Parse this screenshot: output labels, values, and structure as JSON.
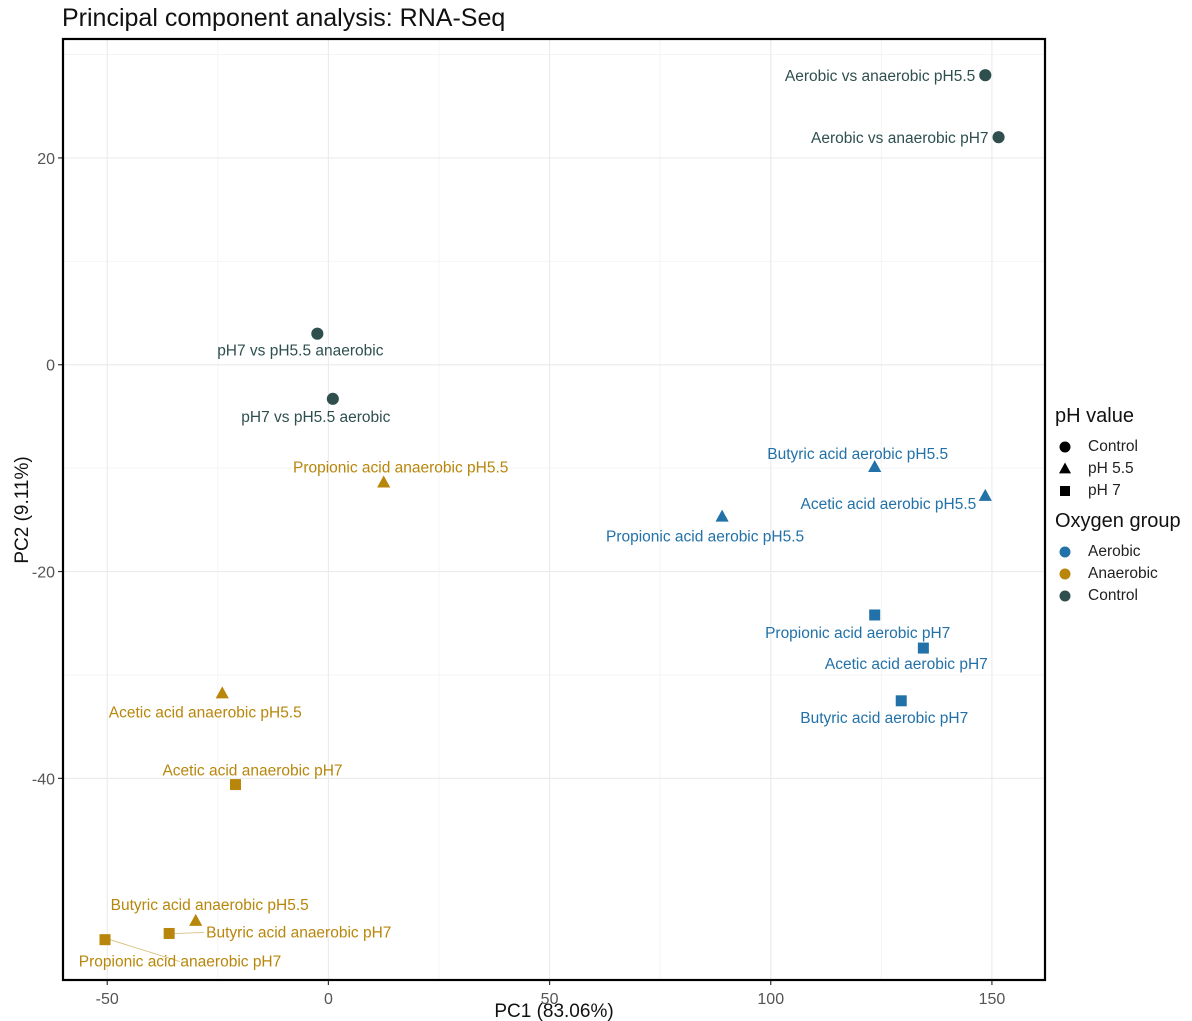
{
  "chart_data": {
    "type": "scatter",
    "title": "Principal component analysis: RNA-Seq",
    "xlabel": "PC1 (83.06%)",
    "ylabel": "PC2 (9.11%)",
    "xlim": [
      -60,
      162
    ],
    "ylim": [
      -59.5,
      31.5
    ],
    "xticks": [
      -50,
      0,
      50,
      100,
      150
    ],
    "yticks": [
      20,
      0,
      -20,
      -40
    ],
    "grid": true,
    "legend_position": "right",
    "legends": [
      {
        "title": "pH value",
        "kind": "shape",
        "items": [
          {
            "label": "Control",
            "shape": "circle"
          },
          {
            "label": "pH 5.5",
            "shape": "triangle"
          },
          {
            "label": "pH 7",
            "shape": "square"
          }
        ]
      },
      {
        "title": "Oxygen group",
        "kind": "color",
        "items": [
          {
            "label": "Aerobic",
            "color": "#2271a8"
          },
          {
            "label": "Anaerobic",
            "color": "#b8860b"
          },
          {
            "label": "Control",
            "color": "#2f4f4f"
          }
        ]
      }
    ],
    "colors": {
      "Aerobic": "#2271a8",
      "Anaerobic": "#b8860b",
      "Control": "#2f4f4f"
    },
    "points": [
      {
        "label": "Aerobic vs anaerobic pH5.5",
        "x": 148.5,
        "y": 28.0,
        "ph": "Control",
        "group": "Control"
      },
      {
        "label": "Aerobic vs anaerobic pH7",
        "x": 151.5,
        "y": 22.0,
        "ph": "Control",
        "group": "Control"
      },
      {
        "label": "pH7 vs pH5.5 anaerobic",
        "x": -2.5,
        "y": 3.0,
        "ph": "Control",
        "group": "Control"
      },
      {
        "label": "pH7 vs pH5.5 aerobic",
        "x": 1.0,
        "y": -3.3,
        "ph": "Control",
        "group": "Control"
      },
      {
        "label": "Propionic acid anaerobic pH5.5",
        "x": 12.5,
        "y": -11.4,
        "ph": "pH 5.5",
        "group": "Anaerobic"
      },
      {
        "label": "Butyric acid aerobic pH5.5",
        "x": 123.5,
        "y": -9.9,
        "ph": "pH 5.5",
        "group": "Aerobic"
      },
      {
        "label": "Acetic acid aerobic pH5.5",
        "x": 148.5,
        "y": -12.7,
        "ph": "pH 5.5",
        "group": "Aerobic"
      },
      {
        "label": "Propionic acid aerobic pH5.5",
        "x": 89.0,
        "y": -14.7,
        "ph": "pH 5.5",
        "group": "Aerobic"
      },
      {
        "label": "Propionic acid aerobic pH7",
        "x": 123.5,
        "y": -24.2,
        "ph": "pH 7",
        "group": "Aerobic"
      },
      {
        "label": "Acetic acid aerobic pH7",
        "x": 134.5,
        "y": -27.4,
        "ph": "pH 7",
        "group": "Aerobic"
      },
      {
        "label": "Butyric acid aerobic pH7",
        "x": 129.5,
        "y": -32.5,
        "ph": "pH 7",
        "group": "Aerobic"
      },
      {
        "label": "Acetic acid anaerobic pH5.5",
        "x": -24.0,
        "y": -31.8,
        "ph": "pH 5.5",
        "group": "Anaerobic"
      },
      {
        "label": "Acetic acid anaerobic pH7",
        "x": -21.0,
        "y": -40.6,
        "ph": "pH 7",
        "group": "Anaerobic"
      },
      {
        "label": "Butyric acid anaerobic pH5.5",
        "x": -30.0,
        "y": -53.8,
        "ph": "pH 5.5",
        "group": "Anaerobic"
      },
      {
        "label": "Butyric acid anaerobic pH7",
        "x": -36.0,
        "y": -55.0,
        "ph": "pH 7",
        "group": "Anaerobic"
      },
      {
        "label": "Propionic acid anaerobic pH7",
        "x": -50.5,
        "y": -55.6,
        "ph": "pH 7",
        "group": "Anaerobic"
      }
    ]
  }
}
